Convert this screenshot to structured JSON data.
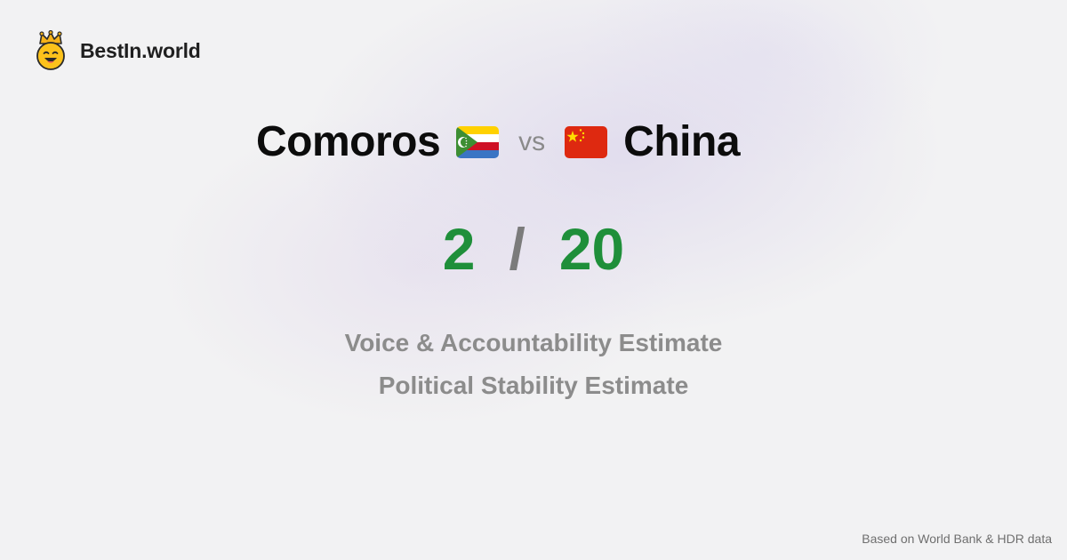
{
  "brand": {
    "name": "BestIn.world",
    "logo_icon": "crowned-smiley-logo-icon"
  },
  "comparison": {
    "left_country": "Comoros",
    "left_flag_icon": "comoros-flag-icon",
    "vs_label": "vs",
    "right_country": "China",
    "right_flag_icon": "china-flag-icon"
  },
  "score": {
    "left": "2",
    "separator": "/",
    "right": "20",
    "color": "#1f8f3a"
  },
  "metrics": [
    "Voice & Accountability Estimate",
    "Political Stability Estimate"
  ],
  "footer": {
    "source": "Based on World Bank & HDR data"
  }
}
